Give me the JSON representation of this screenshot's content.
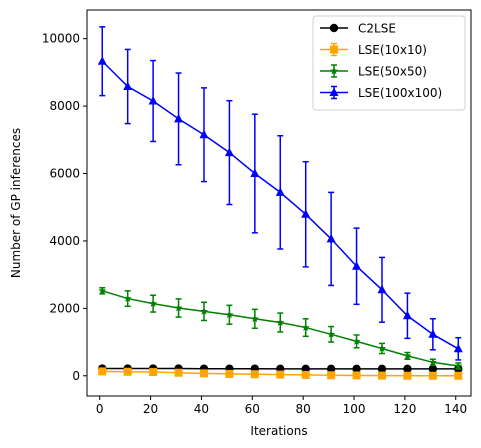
{
  "chart_data": {
    "type": "line",
    "title": "",
    "xlabel": "Iterations",
    "ylabel": "Number of GP inferences",
    "xlim": [
      -5,
      146
    ],
    "ylim": [
      -600,
      10850
    ],
    "xticks": [
      0,
      20,
      40,
      60,
      80,
      100,
      120,
      140
    ],
    "yticks": [
      0,
      2000,
      4000,
      6000,
      8000,
      10000
    ],
    "grid": false,
    "legend_position": "top-right",
    "series": [
      {
        "name": "C2LSE",
        "color": "#000000",
        "marker": "circle",
        "x": [
          1,
          11,
          21,
          31,
          41,
          51,
          61,
          71,
          81,
          91,
          101,
          111,
          121,
          131,
          141
        ],
        "y": [
          215,
          215,
          215,
          215,
          210,
          210,
          210,
          205,
          205,
          205,
          205,
          205,
          205,
          205,
          205
        ]
      },
      {
        "name": "LSE(10x10)",
        "color": "#ffa500",
        "marker": "square",
        "x": [
          1,
          11,
          21,
          31,
          41,
          51,
          61,
          71,
          81,
          91,
          101,
          111,
          121,
          131,
          141
        ],
        "y": [
          130,
          120,
          110,
          90,
          70,
          55,
          45,
          35,
          25,
          15,
          10,
          5,
          0,
          0,
          0
        ],
        "err": [
          80,
          80,
          80,
          75,
          70,
          65,
          60,
          55,
          50,
          45,
          40,
          35,
          30,
          30,
          30
        ]
      },
      {
        "name": "LSE(50x50)",
        "color": "#008000",
        "marker": "star",
        "x": [
          1,
          11,
          21,
          31,
          41,
          51,
          61,
          71,
          81,
          91,
          101,
          111,
          121,
          131,
          141
        ],
        "y": [
          2520,
          2290,
          2140,
          2010,
          1910,
          1810,
          1690,
          1580,
          1430,
          1230,
          1020,
          810,
          590,
          400,
          290
        ],
        "err": [
          90,
          230,
          250,
          270,
          270,
          280,
          280,
          280,
          260,
          230,
          190,
          150,
          100,
          90,
          90
        ]
      },
      {
        "name": "LSE(100x100)",
        "color": "#0000ff",
        "marker": "triangle",
        "x": [
          1,
          11,
          21,
          31,
          41,
          51,
          61,
          71,
          81,
          91,
          101,
          111,
          121,
          131,
          141
        ],
        "y": [
          9330,
          8580,
          8150,
          7620,
          7150,
          6620,
          6000,
          5440,
          4790,
          4060,
          3250,
          2550,
          1780,
          1230,
          800
        ],
        "err": [
          1020,
          1100,
          1200,
          1360,
          1390,
          1540,
          1760,
          1680,
          1560,
          1380,
          1130,
          960,
          670,
          460,
          330
        ]
      }
    ]
  }
}
